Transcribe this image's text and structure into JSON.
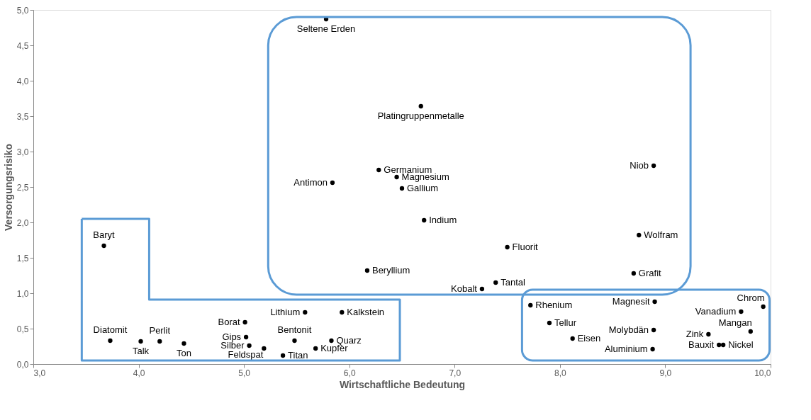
{
  "chart_data": {
    "type": "scatter",
    "xlabel": "Wirtschaftliche Bedeutung",
    "ylabel": "Versorgungsrisiko",
    "xlim": [
      3.0,
      10.0
    ],
    "ylim": [
      0.0,
      5.0
    ],
    "xticks": [
      {
        "value": 3,
        "label": "3,0"
      },
      {
        "value": 4,
        "label": "4,0"
      },
      {
        "value": 5,
        "label": "5,0"
      },
      {
        "value": 6,
        "label": "6,0"
      },
      {
        "value": 7,
        "label": "7,0"
      },
      {
        "value": 8,
        "label": "8,0"
      },
      {
        "value": 9,
        "label": "9,0"
      },
      {
        "value": 10,
        "label": "10,0"
      }
    ],
    "yticks": [
      {
        "value": 0,
        "label": "0,0"
      },
      {
        "value": 0.5,
        "label": "0,5"
      },
      {
        "value": 1,
        "label": "1,0"
      },
      {
        "value": 1.5,
        "label": "1,5"
      },
      {
        "value": 2,
        "label": "2,0"
      },
      {
        "value": 2.5,
        "label": "2,5"
      },
      {
        "value": 3,
        "label": "3,0"
      },
      {
        "value": 3.5,
        "label": "3,5"
      },
      {
        "value": 4,
        "label": "4,0"
      },
      {
        "value": 4.5,
        "label": "4,5"
      },
      {
        "value": 5,
        "label": "5,0"
      }
    ],
    "grid": false,
    "marker": "circle",
    "series": [
      {
        "color": "#000000",
        "x": [
          5.78,
          6.68,
          6.28,
          6.45,
          6.5,
          5.84,
          6.71,
          8.89,
          8.75,
          7.5,
          6.17,
          8.7,
          7.39,
          7.26,
          3.67,
          3.73,
          4.02,
          4.2,
          4.43,
          5.01,
          5.02,
          5.05,
          5.19,
          5.37,
          5.48,
          5.58,
          5.93,
          5.83,
          5.68,
          7.72,
          7.9,
          8.12,
          8.9,
          8.89,
          8.88,
          9.93,
          9.72,
          9.81,
          9.41,
          9.51,
          9.55
        ],
        "values": [
          4.87,
          3.64,
          2.74,
          2.64,
          2.48,
          2.56,
          2.03,
          2.8,
          1.82,
          1.65,
          1.32,
          1.28,
          1.15,
          1.06,
          1.67,
          0.33,
          0.32,
          0.32,
          0.29,
          0.59,
          0.38,
          0.26,
          0.22,
          0.12,
          0.33,
          0.73,
          0.73,
          0.33,
          0.22,
          0.83,
          0.58,
          0.36,
          0.88,
          0.48,
          0.21,
          0.81,
          0.74,
          0.46,
          0.42,
          0.27,
          0.27
        ]
      }
    ],
    "annotations": [
      {
        "text": "Seltene Erden",
        "x": 5.78,
        "y": 4.87
      },
      {
        "text": "Platingruppenmetalle",
        "x": 6.68,
        "y": 3.64
      },
      {
        "text": "Germanium",
        "x": 6.28,
        "y": 2.74
      },
      {
        "text": "Magnesium",
        "x": 6.45,
        "y": 2.64
      },
      {
        "text": "Gallium",
        "x": 6.5,
        "y": 2.48
      },
      {
        "text": "Antimon",
        "x": 5.84,
        "y": 2.56
      },
      {
        "text": "Indium",
        "x": 6.71,
        "y": 2.03
      },
      {
        "text": "Niob",
        "x": 8.89,
        "y": 2.8
      },
      {
        "text": "Wolfram",
        "x": 8.75,
        "y": 1.82
      },
      {
        "text": "Fluorit",
        "x": 7.5,
        "y": 1.65
      },
      {
        "text": "Beryllium",
        "x": 6.17,
        "y": 1.32
      },
      {
        "text": "Grafit",
        "x": 8.7,
        "y": 1.28
      },
      {
        "text": "Tantal",
        "x": 7.39,
        "y": 1.15
      },
      {
        "text": "Kobalt",
        "x": 7.26,
        "y": 1.06
      },
      {
        "text": "Baryt",
        "x": 3.67,
        "y": 1.67
      },
      {
        "text": "Diatomit",
        "x": 3.73,
        "y": 0.33
      },
      {
        "text": "Talk",
        "x": 4.02,
        "y": 0.32
      },
      {
        "text": "Perlit",
        "x": 4.2,
        "y": 0.32
      },
      {
        "text": "Ton",
        "x": 4.43,
        "y": 0.29
      },
      {
        "text": "Borat",
        "x": 5.01,
        "y": 0.59
      },
      {
        "text": "Gips",
        "x": 5.02,
        "y": 0.38
      },
      {
        "text": "Silber",
        "x": 5.05,
        "y": 0.26
      },
      {
        "text": "Feldspat",
        "x": 5.19,
        "y": 0.22
      },
      {
        "text": "Titan",
        "x": 5.37,
        "y": 0.12
      },
      {
        "text": "Bentonit",
        "x": 5.48,
        "y": 0.33
      },
      {
        "text": "Lithium",
        "x": 5.58,
        "y": 0.73
      },
      {
        "text": "Kalkstein",
        "x": 5.93,
        "y": 0.73
      },
      {
        "text": "Quarz",
        "x": 5.83,
        "y": 0.33
      },
      {
        "text": "Kupfer",
        "x": 5.68,
        "y": 0.22
      },
      {
        "text": "Rhenium",
        "x": 7.72,
        "y": 0.83
      },
      {
        "text": "Tellur",
        "x": 7.9,
        "y": 0.58
      },
      {
        "text": "Eisen",
        "x": 8.12,
        "y": 0.36
      },
      {
        "text": "Magnesit",
        "x": 8.9,
        "y": 0.88
      },
      {
        "text": "Molybdän",
        "x": 8.89,
        "y": 0.48
      },
      {
        "text": "Aluminium",
        "x": 8.88,
        "y": 0.21
      },
      {
        "text": "Chrom",
        "x": 9.93,
        "y": 0.81
      },
      {
        "text": "Vanadium",
        "x": 9.72,
        "y": 0.74
      },
      {
        "text": "Mangan",
        "x": 9.81,
        "y": 0.46
      },
      {
        "text": "Zink",
        "x": 9.41,
        "y": 0.42
      },
      {
        "text": "Bauxit",
        "x": 9.51,
        "y": 0.27
      },
      {
        "text": "Nickel",
        "x": 9.55,
        "y": 0.27
      }
    ]
  }
}
